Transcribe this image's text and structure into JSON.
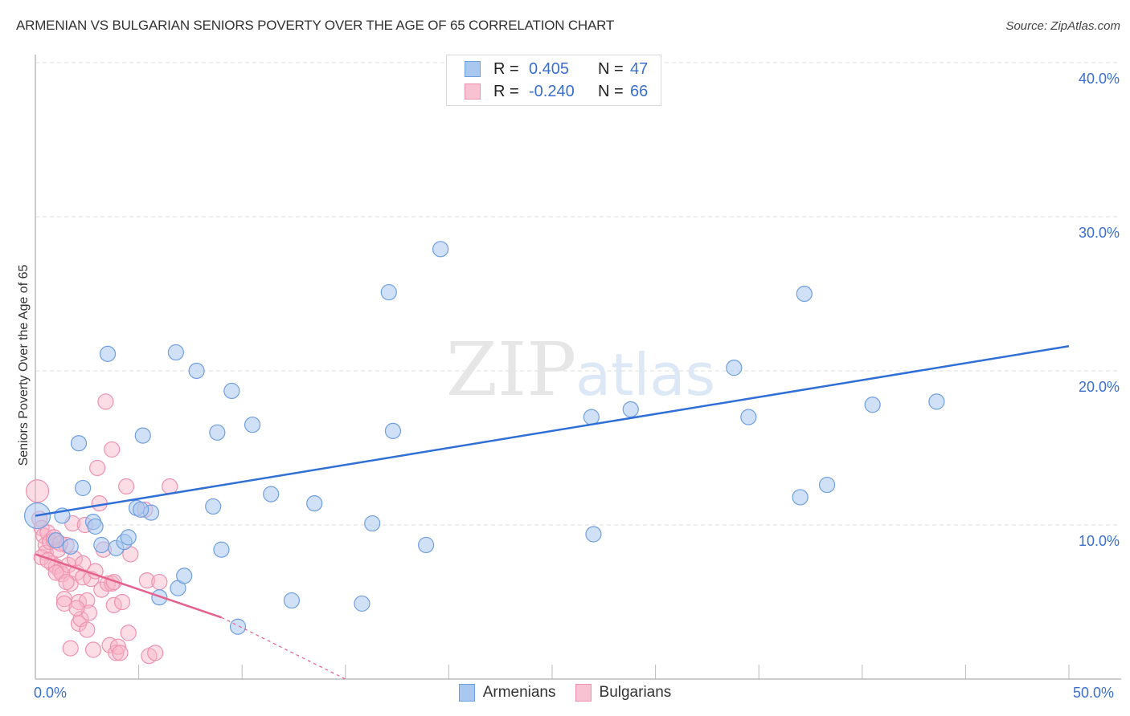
{
  "header": {
    "title": "ARMENIAN VS BULGARIAN SENIORS POVERTY OVER THE AGE OF 65 CORRELATION CHART",
    "source": "Source: ZipAtlas.com"
  },
  "legend": {
    "rows": [
      {
        "r_label": "R =",
        "r_value": "0.405",
        "n_label": "N =",
        "n_value": "47",
        "color": "#a9c8f0",
        "border": "#6f9fe0"
      },
      {
        "r_label": "R =",
        "r_value": "-0.240",
        "n_label": "N =",
        "n_value": "66",
        "color": "#f8c2d3",
        "border": "#ee92b0"
      }
    ],
    "bottom": [
      {
        "label": "Armenians",
        "color": "#a9c8f0",
        "border": "#6f9fe0"
      },
      {
        "label": "Bulgarians",
        "color": "#f8c2d3",
        "border": "#ee92b0"
      }
    ]
  },
  "axes": {
    "x_min_label": "0.0%",
    "x_max_label": "50.0%",
    "y_ticks": [
      "10.0%",
      "20.0%",
      "30.0%",
      "40.0%"
    ],
    "ylabel": "Seniors Poverty Over the Age of 65"
  },
  "watermark": {
    "zip": "ZIP",
    "atlas": "atlas"
  },
  "colors": {
    "armenian_line": "#2f6fd6",
    "bulgarian_line": "#e4628c",
    "armenian_fill": "rgba(169,200,240,0.55)",
    "armenian_stroke": "#6f9fe0",
    "bulgarian_fill": "rgba(248,180,200,0.45)",
    "bulgarian_stroke": "#ee92b0",
    "tick_label": "#3a6fcf",
    "grid": "#dddddd"
  },
  "chart_data": {
    "type": "scatter",
    "title": "ARMENIAN VS BULGARIAN SENIORS POVERTY OVER THE AGE OF 65 CORRELATION CHART",
    "xlabel": "",
    "ylabel": "Seniors Poverty Over the Age of 65",
    "xlim": [
      0,
      50
    ],
    "ylim": [
      0,
      40
    ],
    "x_ticks": [
      0,
      5,
      10,
      15,
      20,
      25,
      30,
      35,
      40,
      45,
      50
    ],
    "y_ticks": [
      10,
      20,
      30,
      40
    ],
    "grid": true,
    "legend_position": "top-center",
    "series": [
      {
        "name": "Armenians",
        "R": 0.405,
        "N": 47,
        "trend": {
          "x": [
            0,
            50
          ],
          "y": [
            10.6,
            21.6
          ]
        },
        "points": [
          [
            0.1,
            10.6
          ],
          [
            1.3,
            10.6
          ],
          [
            1.7,
            8.6
          ],
          [
            2.1,
            15.3
          ],
          [
            2.3,
            12.4
          ],
          [
            2.8,
            10.2
          ],
          [
            3.2,
            8.7
          ],
          [
            3.5,
            21.1
          ],
          [
            3.9,
            8.5
          ],
          [
            4.3,
            8.9
          ],
          [
            4.5,
            9.2
          ],
          [
            5.2,
            15.8
          ],
          [
            4.9,
            11.1
          ],
          [
            5.6,
            10.8
          ],
          [
            6.0,
            5.3
          ],
          [
            6.9,
            5.9
          ],
          [
            6.8,
            21.2
          ],
          [
            7.2,
            6.7
          ],
          [
            7.8,
            20.0
          ],
          [
            8.6,
            11.2
          ],
          [
            9.0,
            8.4
          ],
          [
            8.8,
            16.0
          ],
          [
            9.5,
            18.7
          ],
          [
            9.8,
            3.4
          ],
          [
            10.5,
            16.5
          ],
          [
            11.4,
            12.0
          ],
          [
            12.4,
            5.1
          ],
          [
            13.5,
            11.4
          ],
          [
            15.8,
            4.9
          ],
          [
            16.3,
            10.1
          ],
          [
            17.1,
            25.1
          ],
          [
            17.3,
            16.1
          ],
          [
            18.9,
            8.7
          ],
          [
            19.6,
            27.9
          ],
          [
            26.9,
            17.0
          ],
          [
            27.0,
            9.4
          ],
          [
            28.8,
            17.5
          ],
          [
            33.8,
            20.2
          ],
          [
            34.5,
            17.0
          ],
          [
            37.0,
            11.8
          ],
          [
            37.2,
            25.0
          ],
          [
            38.3,
            12.6
          ],
          [
            40.5,
            17.8
          ],
          [
            43.6,
            18.0
          ],
          [
            2.9,
            9.9
          ],
          [
            1.0,
            9.0
          ],
          [
            5.1,
            11.0
          ]
        ]
      },
      {
        "name": "Bulgarians",
        "R": -0.24,
        "N": 66,
        "trend": {
          "x": [
            0,
            9.0
          ],
          "y": [
            8.1,
            4.0
          ]
        },
        "trend_dashed": {
          "x": [
            9.0,
            15.0
          ],
          "y": [
            4.0,
            0.0
          ]
        },
        "points": [
          [
            0.1,
            12.2
          ],
          [
            0.2,
            10.4
          ],
          [
            0.3,
            9.8
          ],
          [
            0.4,
            9.3
          ],
          [
            0.5,
            8.7
          ],
          [
            0.5,
            8.2
          ],
          [
            0.6,
            9.5
          ],
          [
            0.7,
            8.9
          ],
          [
            0.8,
            7.5
          ],
          [
            0.9,
            9.0
          ],
          [
            1.0,
            7.3
          ],
          [
            1.1,
            8.4
          ],
          [
            1.2,
            7.0
          ],
          [
            1.3,
            6.8
          ],
          [
            1.4,
            5.2
          ],
          [
            1.4,
            4.9
          ],
          [
            1.5,
            8.7
          ],
          [
            1.6,
            7.4
          ],
          [
            1.7,
            6.2
          ],
          [
            1.7,
            2.0
          ],
          [
            1.8,
            10.1
          ],
          [
            1.9,
            7.8
          ],
          [
            2.0,
            6.9
          ],
          [
            2.1,
            3.6
          ],
          [
            2.1,
            5.0
          ],
          [
            2.2,
            3.9
          ],
          [
            2.3,
            6.6
          ],
          [
            2.3,
            7.5
          ],
          [
            2.4,
            10.0
          ],
          [
            2.5,
            3.2
          ],
          [
            2.5,
            5.1
          ],
          [
            2.6,
            4.3
          ],
          [
            2.7,
            6.5
          ],
          [
            2.8,
            1.9
          ],
          [
            2.9,
            7.0
          ],
          [
            3.0,
            13.7
          ],
          [
            3.1,
            11.4
          ],
          [
            3.2,
            5.8
          ],
          [
            3.3,
            8.4
          ],
          [
            3.4,
            18.0
          ],
          [
            3.5,
            6.2
          ],
          [
            3.6,
            2.2
          ],
          [
            3.7,
            6.2
          ],
          [
            3.7,
            14.9
          ],
          [
            3.8,
            4.8
          ],
          [
            3.8,
            6.3
          ],
          [
            3.9,
            1.7
          ],
          [
            4.0,
            2.1
          ],
          [
            4.1,
            1.7
          ],
          [
            4.2,
            5.0
          ],
          [
            4.4,
            12.5
          ],
          [
            4.5,
            3.0
          ],
          [
            4.6,
            8.1
          ],
          [
            5.3,
            11.0
          ],
          [
            5.4,
            6.4
          ],
          [
            5.5,
            1.5
          ],
          [
            5.8,
            1.7
          ],
          [
            6.0,
            6.3
          ],
          [
            6.5,
            12.5
          ],
          [
            1.0,
            6.9
          ],
          [
            0.3,
            7.9
          ],
          [
            0.9,
            9.2
          ],
          [
            1.5,
            6.3
          ],
          [
            2.0,
            4.6
          ],
          [
            0.6,
            7.7
          ],
          [
            1.2,
            8.8
          ]
        ]
      }
    ]
  }
}
